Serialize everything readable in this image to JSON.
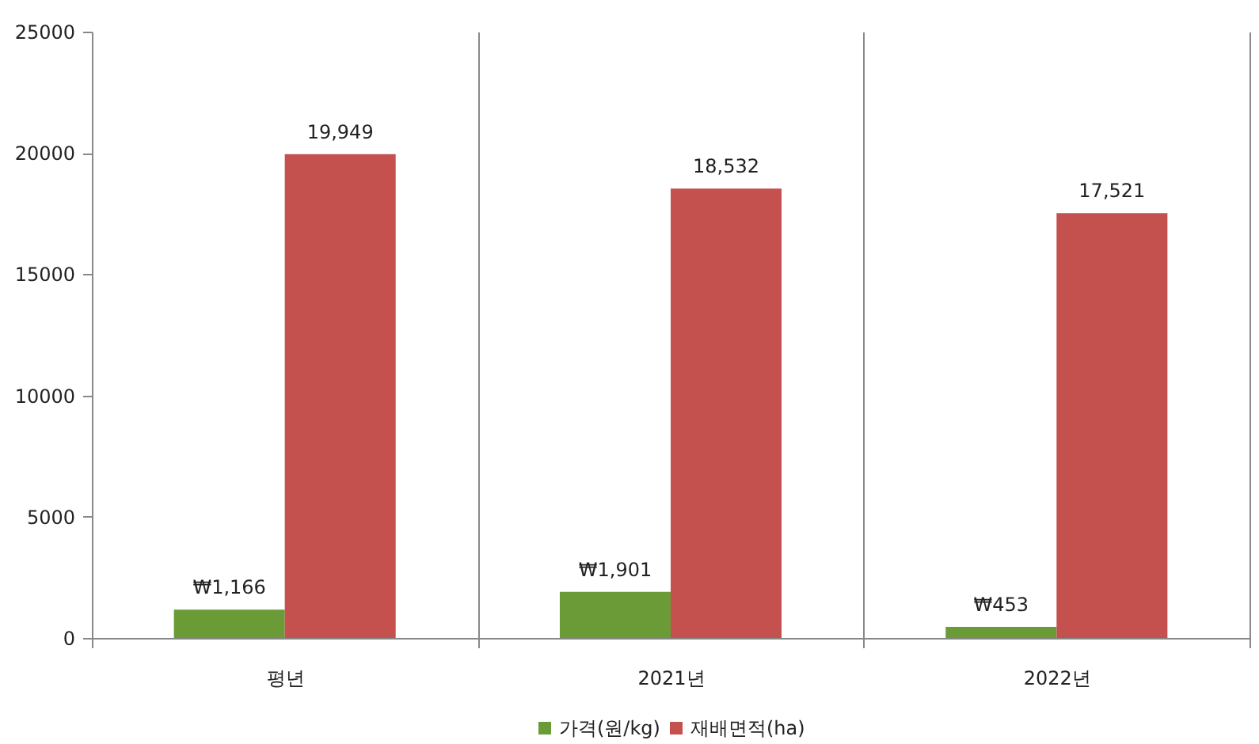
{
  "chart_data": {
    "type": "bar",
    "categories": [
      "평년",
      "2021년",
      "2022년"
    ],
    "series": [
      {
        "name": "가격(원/kg)",
        "color": "#6b9b37",
        "values": [
          1166,
          1901,
          453
        ],
        "value_labels": [
          "₩1,166",
          "₩1,901",
          "₩453"
        ]
      },
      {
        "name": "재배면적(ha)",
        "color": "#c5514f",
        "values": [
          19949,
          18532,
          17521
        ],
        "value_labels": [
          "19,949",
          "18,532",
          "17,521"
        ]
      }
    ],
    "ylim": [
      0,
      25000
    ],
    "yticks": [
      0,
      5000,
      10000,
      15000,
      20000,
      25000
    ],
    "grid": "x",
    "legend": "bottom"
  }
}
